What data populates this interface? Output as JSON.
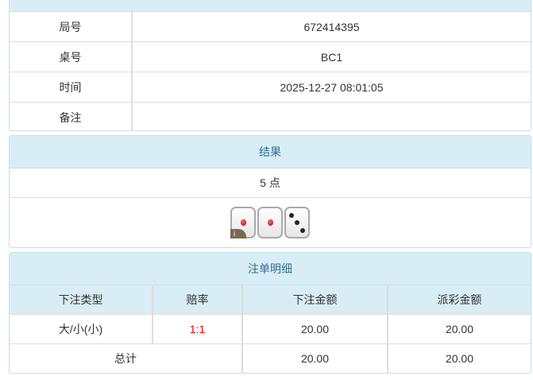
{
  "info": {
    "rows": [
      {
        "label": "局号",
        "value": "672414395"
      },
      {
        "label": "桌号",
        "value": "BC1"
      },
      {
        "label": "时间",
        "value": "2025-12-27 08:01:05"
      },
      {
        "label": "备注",
        "value": ""
      }
    ]
  },
  "result": {
    "title": "结果",
    "points": "5 点",
    "dice": [
      1,
      1,
      3
    ],
    "info_badge": "i"
  },
  "bets": {
    "title": "注单明细",
    "headers": [
      "下注类型",
      "赔率",
      "下注金额",
      "派彩金额"
    ],
    "rows": [
      {
        "type": "大/小(小)",
        "odds": "1:1",
        "amount": "20.00",
        "payout": "20.00"
      }
    ],
    "total": {
      "label": "总计",
      "amount": "20.00",
      "payout": "20.00"
    }
  },
  "colors": {
    "header_bg": "#d9edf7",
    "header_text": "#31708f",
    "odds": "#ee0000"
  }
}
